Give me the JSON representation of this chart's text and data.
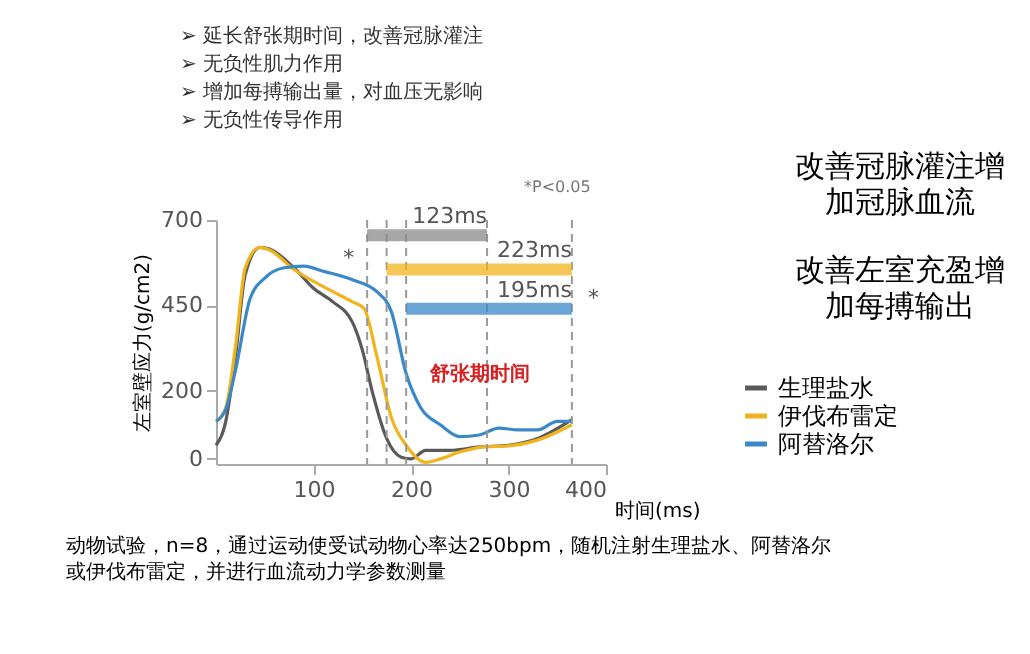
{
  "chart_data": {
    "type": "line",
    "xlabel": "时间(ms)",
    "ylabel": "左室壁应力(g/cm2)",
    "xlim": [
      0,
      400
    ],
    "xticks": [
      100,
      200,
      300,
      400
    ],
    "ylim": [
      -15,
      700
    ],
    "yticks": [
      0,
      200,
      450,
      700
    ],
    "grid": false,
    "legend": "right",
    "line_style": "solid",
    "marker": "none",
    "series": [
      {
        "name": "生理盐水",
        "color": "#5a5a5a",
        "x": [
          0,
          10,
          20,
          30,
          45,
          55,
          80,
          100,
          120,
          140,
          150,
          160,
          175,
          190,
          200,
          215,
          240,
          270,
          300,
          330,
          365
        ],
        "values": [
          40,
          110,
          300,
          540,
          620,
          615,
          560,
          500,
          460,
          400,
          320,
          200,
          60,
          5,
          0,
          25,
          25,
          35,
          40,
          60,
          115
        ]
      },
      {
        "name": "伊伐布雷定",
        "color": "#f0b41e",
        "x": [
          0,
          10,
          20,
          30,
          45,
          55,
          80,
          100,
          120,
          140,
          152,
          165,
          180,
          195,
          215,
          230,
          250,
          275,
          300,
          330,
          365
        ],
        "values": [
          110,
          150,
          330,
          560,
          620,
          612,
          555,
          520,
          490,
          460,
          440,
          300,
          120,
          40,
          -10,
          0,
          20,
          35,
          38,
          55,
          100
        ]
      },
      {
        "name": "阿替洛尔",
        "color": "#3a88c8",
        "x": [
          0,
          10,
          20,
          35,
          50,
          70,
          90,
          110,
          140,
          165,
          180,
          195,
          210,
          230,
          250,
          270,
          290,
          310,
          330,
          350,
          365
        ],
        "values": [
          110,
          145,
          260,
          470,
          530,
          560,
          565,
          550,
          525,
          490,
          430,
          250,
          150,
          100,
          65,
          70,
          90,
          85,
          85,
          110,
          110
        ]
      },
      {
        "color": "#8a8a8a",
        "x": [
          155,
          278
        ],
        "values": [
          655,
          655
        ]
      },
      {
        "color": "#f0b41e",
        "x": [
          175,
          365
        ],
        "values": [
          555,
          555
        ]
      },
      {
        "color": "#3a88c8",
        "x": [
          195,
          365
        ],
        "values": [
          440,
          440
        ]
      }
    ],
    "ref_lines": [
      {
        "axis": "x",
        "value": 155,
        "color": "#999999",
        "line_style": "dashed"
      },
      {
        "axis": "x",
        "value": 175,
        "color": "#999999",
        "line_style": "dashed"
      },
      {
        "axis": "x",
        "value": 195,
        "color": "#999999",
        "line_style": "dashed"
      },
      {
        "axis": "x",
        "value": 278,
        "color": "#999999",
        "line_style": "dashed"
      },
      {
        "axis": "x",
        "value": 365,
        "color": "#999999",
        "line_style": "dashed"
      }
    ],
    "annotations": [
      {
        "text": "123ms",
        "x": 278,
        "y": 655
      },
      {
        "text": "223ms",
        "x": 365,
        "y": 555
      },
      {
        "text": "195ms",
        "x": 365,
        "y": 440
      },
      {
        "text": "*",
        "x": 155,
        "y": 655
      },
      {
        "text": "*",
        "x": 365,
        "y": 555
      },
      "舒张期时间",
      "*P<0.05",
      "➢    延长舒张期时间，改善冠脉灌注",
      "➢    无负性肌力作用",
      "➢    增加每搏输出量，对血压无影响",
      "➢    无负性传导作用",
      "改善冠脉灌注增加冠脉血流",
      "改善左室充盈增加每搏输出",
      "动物试验，n=8，通过运动使受试动物心率达250bpm，随机注射生理盐水、阿替洛尔或伊伐布雷定，并进行血流动力学参数测量"
    ]
  }
}
